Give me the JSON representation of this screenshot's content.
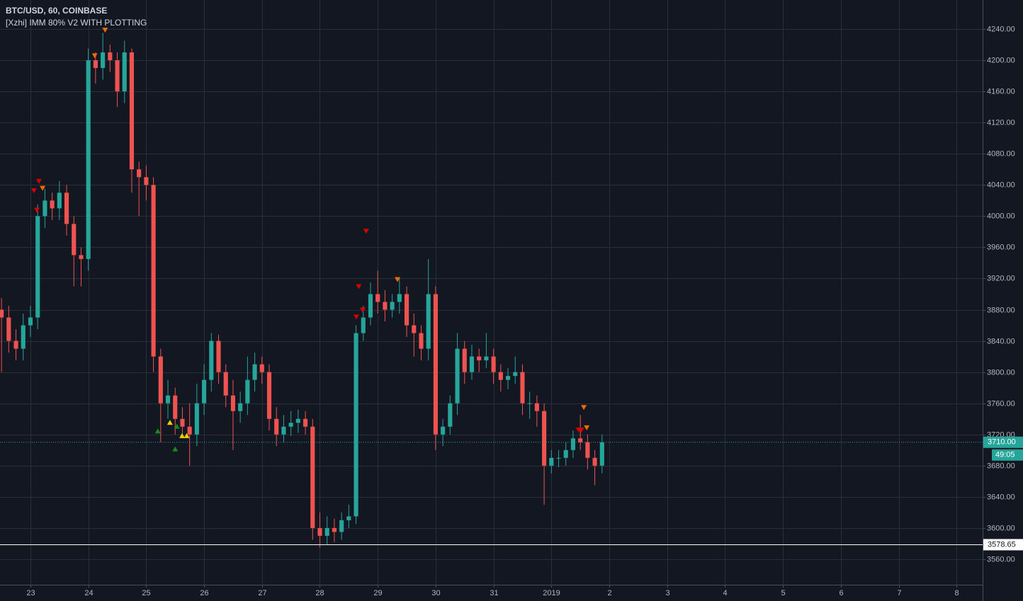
{
  "chart_data": {
    "type": "candlestick",
    "title": "BTC/USD, 60, COINBASE",
    "subtitle": "[Xzhi] IMM 80% V2 WITH PLOTTING",
    "up_color": "#26a69a",
    "down_color": "#ef5350",
    "grid": true,
    "xlim": [
      -0.526,
      16.45
    ],
    "ylim": [
      3527.3,
      4277.2
    ],
    "xticks": [
      {
        "value": 0,
        "label": "23"
      },
      {
        "value": 1,
        "label": "24"
      },
      {
        "value": 2,
        "label": "25"
      },
      {
        "value": 3,
        "label": "26"
      },
      {
        "value": 4,
        "label": "27"
      },
      {
        "value": 5,
        "label": "28"
      },
      {
        "value": 6,
        "label": "29"
      },
      {
        "value": 7,
        "label": "30"
      },
      {
        "value": 8,
        "label": "31"
      },
      {
        "value": 9,
        "label": "2019"
      },
      {
        "value": 10,
        "label": "2"
      },
      {
        "value": 11,
        "label": "3"
      },
      {
        "value": 12,
        "label": "4"
      },
      {
        "value": 13,
        "label": "5"
      },
      {
        "value": 14,
        "label": "6"
      },
      {
        "value": 15,
        "label": "7"
      },
      {
        "value": 16,
        "label": "8"
      }
    ],
    "yticks": [
      {
        "value": 3560,
        "label": "3560.00"
      },
      {
        "value": 3600,
        "label": "3600.00"
      },
      {
        "value": 3640,
        "label": "3640.00"
      },
      {
        "value": 3680,
        "label": "3680.00"
      },
      {
        "value": 3720,
        "label": "3720.00"
      },
      {
        "value": 3760,
        "label": "3760.00"
      },
      {
        "value": 3800,
        "label": "3800.00"
      },
      {
        "value": 3840,
        "label": "3840.00"
      },
      {
        "value": 3880,
        "label": "3880.00"
      },
      {
        "value": 3920,
        "label": "3920.00"
      },
      {
        "value": 3960,
        "label": "3960.00"
      },
      {
        "value": 4000,
        "label": "4000.00"
      },
      {
        "value": 4040,
        "label": "4040.00"
      },
      {
        "value": 4080,
        "label": "4080.00"
      },
      {
        "value": 4120,
        "label": "4120.00"
      },
      {
        "value": 4160,
        "label": "4160.00"
      },
      {
        "value": 4200,
        "label": "4200.00"
      },
      {
        "value": 4240,
        "label": "4240.00"
      }
    ],
    "x": [
      -0.5,
      -0.375,
      -0.25,
      -0.125,
      0,
      0.125,
      0.25,
      0.375,
      0.5,
      0.625,
      0.75,
      0.875,
      1,
      1.125,
      1.25,
      1.375,
      1.5,
      1.625,
      1.75,
      1.875,
      2,
      2.125,
      2.25,
      2.375,
      2.5,
      2.625,
      2.75,
      2.875,
      3,
      3.125,
      3.25,
      3.375,
      3.5,
      3.625,
      3.75,
      3.875,
      4,
      4.125,
      4.25,
      4.375,
      4.5,
      4.625,
      4.75,
      4.875,
      5,
      5.125,
      5.25,
      5.375,
      5.5,
      5.625,
      5.75,
      5.875,
      6,
      6.125,
      6.25,
      6.375,
      6.5,
      6.625,
      6.75,
      6.875,
      7,
      7.125,
      7.25,
      7.375,
      7.5,
      7.625,
      7.75,
      7.875,
      8,
      8.125,
      8.25,
      8.375,
      8.5,
      8.625,
      8.75,
      8.875,
      9,
      9.125,
      9.25,
      9.375,
      9.5,
      9.625,
      9.75,
      9.875
    ],
    "open": [
      3880,
      3870,
      3840,
      3830,
      3860,
      3870,
      4000,
      4020,
      4010,
      4030,
      3990,
      3950,
      3945,
      4200,
      4190,
      4210,
      4200,
      4160,
      4210,
      4060,
      4050,
      4040,
      3820,
      3760,
      3770,
      3740,
      3730,
      3720,
      3760,
      3790,
      3840,
      3800,
      3770,
      3750,
      3760,
      3790,
      3810,
      3800,
      3740,
      3720,
      3730,
      3735,
      3740,
      3730,
      3600,
      3590,
      3600,
      3595,
      3610,
      3615,
      3850,
      3870,
      3900,
      3890,
      3880,
      3890,
      3900,
      3860,
      3850,
      3830,
      3900,
      3720,
      3730,
      3760,
      3830,
      3800,
      3820,
      3815,
      3820,
      3800,
      3790,
      3795,
      3800,
      3760,
      3760,
      3750,
      3680,
      3690,
      3690,
      3700,
      3715,
      3710,
      3690,
      3680
    ],
    "high": [
      3895,
      3885,
      3855,
      3875,
      3885,
      4015,
      4035,
      4030,
      4045,
      4040,
      4000,
      3960,
      4215,
      4210,
      4235,
      4220,
      4210,
      4225,
      4215,
      4070,
      4065,
      4050,
      3830,
      3790,
      3780,
      3755,
      3760,
      3785,
      3810,
      3850,
      3848,
      3810,
      3790,
      3775,
      3820,
      3825,
      3820,
      3810,
      3755,
      3745,
      3750,
      3752,
      3750,
      3740,
      3620,
      3615,
      3612,
      3620,
      3630,
      3860,
      3885,
      3915,
      3930,
      3905,
      3900,
      3920,
      3910,
      3875,
      3860,
      3945,
      3910,
      3740,
      3770,
      3850,
      3840,
      3835,
      3830,
      3850,
      3830,
      3810,
      3805,
      3820,
      3810,
      3775,
      3770,
      3760,
      3700,
      3700,
      3710,
      3725,
      3745,
      3720,
      3700,
      3720
    ],
    "low": [
      3800,
      3825,
      3815,
      3815,
      3845,
      3855,
      3985,
      3995,
      3995,
      3975,
      3910,
      3910,
      3930,
      4170,
      4175,
      4185,
      4140,
      4145,
      4030,
      4000,
      4020,
      3800,
      3710,
      3740,
      3720,
      3715,
      3680,
      3705,
      3745,
      3775,
      3785,
      3755,
      3700,
      3735,
      3745,
      3775,
      3785,
      3725,
      3705,
      3710,
      3718,
      3722,
      3720,
      3585,
      3575,
      3578,
      3582,
      3585,
      3600,
      3605,
      3840,
      3860,
      3875,
      3865,
      3870,
      3875,
      3845,
      3820,
      3815,
      3815,
      3700,
      3705,
      3720,
      3745,
      3785,
      3790,
      3800,
      3805,
      3785,
      3775,
      3778,
      3785,
      3745,
      3740,
      3730,
      3630,
      3670,
      3678,
      3680,
      3690,
      3700,
      3675,
      3655,
      3670
    ],
    "close": [
      3870,
      3840,
      3830,
      3860,
      3870,
      4000,
      4020,
      4010,
      4030,
      3990,
      3950,
      3945,
      4200,
      4190,
      4210,
      4200,
      4160,
      4210,
      4060,
      4050,
      4040,
      3820,
      3760,
      3770,
      3740,
      3730,
      3720,
      3760,
      3790,
      3840,
      3800,
      3770,
      3750,
      3760,
      3790,
      3810,
      3800,
      3740,
      3720,
      3730,
      3735,
      3740,
      3730,
      3600,
      3590,
      3600,
      3595,
      3610,
      3615,
      3850,
      3870,
      3900,
      3890,
      3880,
      3890,
      3900,
      3860,
      3850,
      3830,
      3900,
      3720,
      3730,
      3760,
      3830,
      3800,
      3820,
      3815,
      3820,
      3800,
      3790,
      3795,
      3800,
      3760,
      3760,
      3750,
      3680,
      3690,
      3690,
      3700,
      3715,
      3710,
      3690,
      3680,
      3710
    ],
    "signals": [
      {
        "x": 0.147,
        "y": 4045,
        "color": "#d50000",
        "direction": "down"
      },
      {
        "x": 0.06,
        "y": 4033,
        "color": "#d50000",
        "direction": "down"
      },
      {
        "x": 0.21,
        "y": 4036,
        "color": "#ef6c00",
        "direction": "down"
      },
      {
        "x": 0.11,
        "y": 4008,
        "color": "#d50000",
        "direction": "down"
      },
      {
        "x": 1.11,
        "y": 4206,
        "color": "#ef6c00",
        "direction": "down"
      },
      {
        "x": 1.29,
        "y": 4239,
        "color": "#ef6c00",
        "direction": "down"
      },
      {
        "x": 2.2,
        "y": 3725,
        "color": "#1b8a1b",
        "direction": "up"
      },
      {
        "x": 2.41,
        "y": 3736,
        "color": "#e6d200",
        "direction": "up"
      },
      {
        "x": 2.53,
        "y": 3731,
        "color": "#1b8a1b",
        "direction": "up"
      },
      {
        "x": 2.5,
        "y": 3702,
        "color": "#1b8a1b",
        "direction": "up"
      },
      {
        "x": 2.62,
        "y": 3719,
        "color": "#e6d200",
        "direction": "up"
      },
      {
        "x": 2.7,
        "y": 3719,
        "color": "#e6d200",
        "direction": "up"
      },
      {
        "x": 5.8,
        "y": 3981,
        "color": "#d50000",
        "direction": "down"
      },
      {
        "x": 5.67,
        "y": 3910,
        "color": "#d50000",
        "direction": "down"
      },
      {
        "x": 5.63,
        "y": 3871,
        "color": "#d50000",
        "direction": "down"
      },
      {
        "x": 5.74,
        "y": 3880,
        "color": "#d50000",
        "direction": "down"
      },
      {
        "x": 6.34,
        "y": 3919,
        "color": "#ef6c00",
        "direction": "down"
      },
      {
        "x": 9.56,
        "y": 3755,
        "color": "#ef6c00",
        "direction": "down"
      },
      {
        "x": 9.47,
        "y": 3726,
        "color": "#d50000",
        "direction": "down"
      },
      {
        "x": 9.52,
        "y": 3726,
        "color": "#d50000",
        "direction": "down"
      },
      {
        "x": 9.61,
        "y": 3729,
        "color": "#ef6c00",
        "direction": "down"
      }
    ],
    "last_price": {
      "value": 3710,
      "label": "3710.00",
      "color": "#26a69a"
    },
    "countdown": "49:05",
    "price_line": {
      "value": 3578.65,
      "color": "#ffffff"
    }
  }
}
